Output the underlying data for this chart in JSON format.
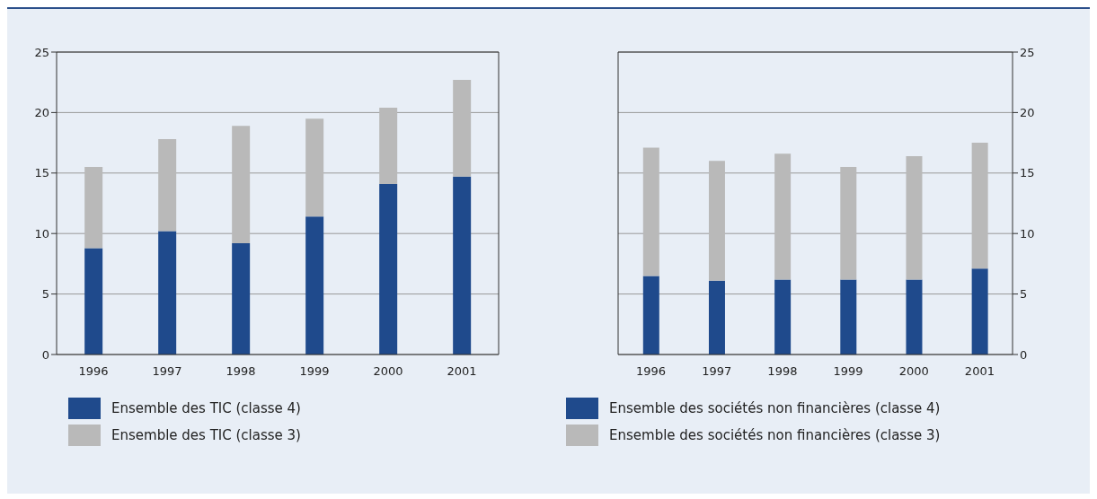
{
  "chart_data": [
    {
      "type": "bar",
      "stacked": true,
      "categories": [
        "1996",
        "1997",
        "1998",
        "1999",
        "2000",
        "2001"
      ],
      "series": [
        {
          "name": "Ensemble des TIC (classe 4)",
          "color": "#1f4a8c",
          "values": [
            8.8,
            10.2,
            9.2,
            11.4,
            14.1,
            14.7
          ]
        },
        {
          "name": "Ensemble des TIC (classe 3)",
          "color": "#b9b9b9",
          "values": [
            6.7,
            7.6,
            9.7,
            8.1,
            6.3,
            8.0
          ]
        }
      ],
      "ylim": [
        0,
        25
      ],
      "yticks": [
        0,
        5,
        10,
        15,
        20,
        25
      ],
      "grid": "y",
      "legend": "bottom"
    },
    {
      "type": "bar",
      "stacked": true,
      "categories": [
        "1996",
        "1997",
        "1998",
        "1999",
        "2000",
        "2001"
      ],
      "series": [
        {
          "name": "Ensemble des sociétés non financières (classe 4)",
          "color": "#1f4a8c",
          "values": [
            6.5,
            6.1,
            6.2,
            6.2,
            6.2,
            7.1
          ]
        },
        {
          "name": "Ensemble des sociétés non financières (classe 3)",
          "color": "#b9b9b9",
          "values": [
            10.6,
            9.9,
            10.4,
            9.3,
            10.2,
            10.4
          ]
        }
      ],
      "ylim": [
        0,
        25
      ],
      "yticks": [
        0,
        5,
        10,
        15,
        20,
        25
      ],
      "grid": "y",
      "legend": "bottom"
    }
  ]
}
